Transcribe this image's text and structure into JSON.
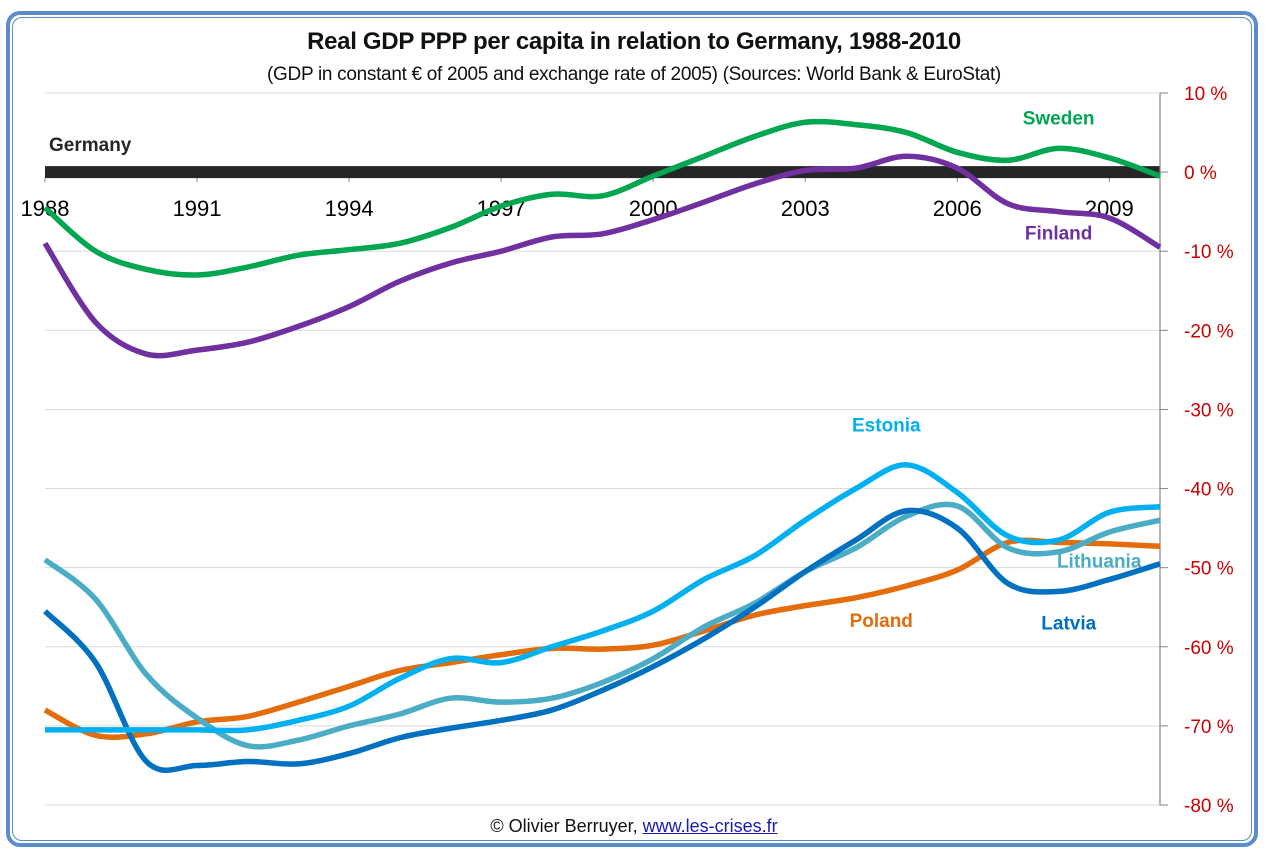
{
  "chart_data": {
    "type": "line",
    "title": "Real GDP PPP per capita in relation to Germany, 1988-2010",
    "subtitle": "(GDP in constant € of 2005 and exchange rate of 2005) (Sources: World Bank & EuroStat)",
    "xlabel": "",
    "ylabel": "",
    "x": [
      1988,
      1989,
      1990,
      1991,
      1992,
      1993,
      1994,
      1995,
      1996,
      1997,
      1998,
      1999,
      2000,
      2001,
      2002,
      2003,
      2004,
      2005,
      2006,
      2007,
      2008,
      2009,
      2010
    ],
    "x_ticks": [
      "1988",
      "1991",
      "1994",
      "1997",
      "2000",
      "2003",
      "2006",
      "2009"
    ],
    "x_tick_values": [
      1988,
      1991,
      1994,
      1997,
      2000,
      2003,
      2006,
      2009
    ],
    "y_ticks": [
      "10 %",
      "0 %",
      "-10 %",
      "-20 %",
      "-30 %",
      "-40 %",
      "-50 %",
      "-60 %",
      "-70 %",
      "-80 %"
    ],
    "y_tick_values": [
      10,
      0,
      -10,
      -20,
      -30,
      -40,
      -50,
      -60,
      -70,
      -80
    ],
    "ylim": [
      -80,
      10
    ],
    "xlim": [
      1988,
      2010
    ],
    "grid": true,
    "axis_color": "#cc0000",
    "baseline": {
      "name": "Germany",
      "value": 0,
      "color": "#262626"
    },
    "series": [
      {
        "name": "Sweden",
        "color": "#00a650",
        "label_year": 2008,
        "label_value": 6,
        "values": [
          -4.5,
          -10,
          -12.3,
          -13,
          -12,
          -10.5,
          -9.8,
          -9,
          -7,
          -4.3,
          -2.8,
          -3,
          -0.5,
          2,
          4.5,
          6.3,
          6,
          5,
          2.5,
          1.5,
          3,
          1.8,
          -0.5
        ]
      },
      {
        "name": "Finland",
        "color": "#7030a0",
        "label_year": 2008,
        "label_value": -8.5,
        "values": [
          -9,
          -19,
          -23,
          -22.5,
          -21.5,
          -19.5,
          -17,
          -13.8,
          -11.5,
          -10,
          -8.2,
          -7.8,
          -6,
          -3.8,
          -1.5,
          0.2,
          0.5,
          2,
          0.5,
          -4,
          -5,
          -5.8,
          -9.5
        ]
      },
      {
        "name": "Poland",
        "color": "#e46c0a",
        "label_year": 2004.5,
        "label_value": -57.5,
        "values": [
          -68,
          -71.2,
          -71,
          -69.5,
          -68.8,
          -67,
          -65,
          -63,
          -62,
          -61,
          -60.2,
          -60.3,
          -59.8,
          -58,
          -56,
          -54.8,
          -53.8,
          -52.3,
          -50.3,
          -46.8,
          -46.8,
          -47,
          -47.3
        ]
      },
      {
        "name": "Lithuania",
        "color": "#4bacc6",
        "label_year": 2008.8,
        "label_value": -50,
        "values": [
          -49,
          -54,
          -63.5,
          -69,
          -72.5,
          -71.8,
          -70,
          -68.5,
          -66.5,
          -67,
          -66.5,
          -64.5,
          -61.5,
          -57.5,
          -54.5,
          -50.5,
          -47.5,
          -43.5,
          -42.2,
          -47.5,
          -48,
          -45.5,
          -44
        ]
      },
      {
        "name": "Latvia",
        "color": "#0070c0",
        "label_year": 2008.2,
        "label_value": -57.8,
        "values": [
          -55.5,
          -62,
          -74.5,
          -75,
          -74.5,
          -74.8,
          -73.5,
          -71.5,
          -70.3,
          -69.3,
          -68,
          -65.5,
          -62.5,
          -59,
          -55,
          -50.5,
          -46.5,
          -42.8,
          -45,
          -52,
          -53,
          -51.5,
          -49.5
        ]
      },
      {
        "name": "Estonia",
        "color": "#00b0f0",
        "label_year": 2004.6,
        "label_value": -32.8,
        "values": [
          -70.5,
          -70.5,
          -70.5,
          -70.5,
          -70.5,
          -69.3,
          -67.5,
          -64,
          -61.5,
          -62,
          -60,
          -58,
          -55.5,
          -51.5,
          -48.5,
          -44,
          -40,
          -37,
          -40.5,
          -46,
          -46.5,
          -43,
          -42.3
        ]
      }
    ]
  },
  "footer": {
    "copyright": "© Olivier Berruyer, ",
    "link_text": "www.les-crises.fr"
  }
}
